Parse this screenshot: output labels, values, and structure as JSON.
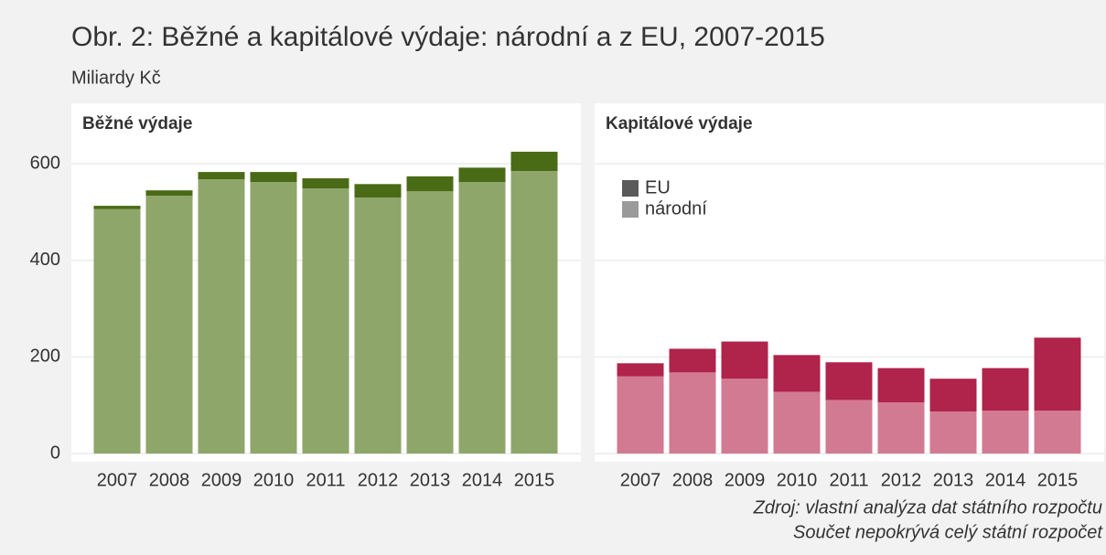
{
  "title": "Obr. 2: Běžné a kapitálové výdaje: národní a z EU, 2007-2015",
  "subtitle": "Miliardy Kč",
  "caption": [
    "Zdroj: vlastní analýza dat státního rozpočtu",
    "Součet nepokrývá celý státní rozpočet"
  ],
  "chart_data": [
    {
      "type": "stacked_bar",
      "title": "Běžné výdaje",
      "categories": [
        "2007",
        "2008",
        "2009",
        "2010",
        "2011",
        "2012",
        "2013",
        "2014",
        "2015"
      ],
      "series": [
        {
          "name": "národní",
          "color": "#8fa66b",
          "values": [
            506,
            534,
            568,
            562,
            549,
            530,
            543,
            562,
            585
          ]
        },
        {
          "name": "EU",
          "color": "#4a6b16",
          "values": [
            7,
            11,
            15,
            21,
            21,
            28,
            31,
            30,
            40
          ]
        }
      ],
      "ylim": [
        -15,
        640
      ],
      "yticks": [
        0,
        200,
        400,
        600
      ],
      "ytick_labels": true,
      "grid": true,
      "legend": false
    },
    {
      "type": "stacked_bar",
      "title": "Kapitálové výdaje",
      "categories": [
        "2007",
        "2008",
        "2009",
        "2010",
        "2011",
        "2012",
        "2013",
        "2014",
        "2015"
      ],
      "series": [
        {
          "name": "národní",
          "color": "#d27a92",
          "values": [
            160,
            168,
            155,
            128,
            111,
            106,
            87,
            89,
            89
          ]
        },
        {
          "name": "EU",
          "color": "#b0234b",
          "values": [
            27,
            49,
            77,
            76,
            78,
            71,
            68,
            88,
            151
          ]
        }
      ],
      "ylim": [
        -15,
        640
      ],
      "yticks": [
        0,
        200,
        400,
        600
      ],
      "ytick_labels": false,
      "grid": true,
      "legend": {
        "position": "top-left",
        "order": [
          1,
          0
        ],
        "colors": [
          "#9a9a9a",
          "#5a5a5a"
        ]
      }
    }
  ]
}
